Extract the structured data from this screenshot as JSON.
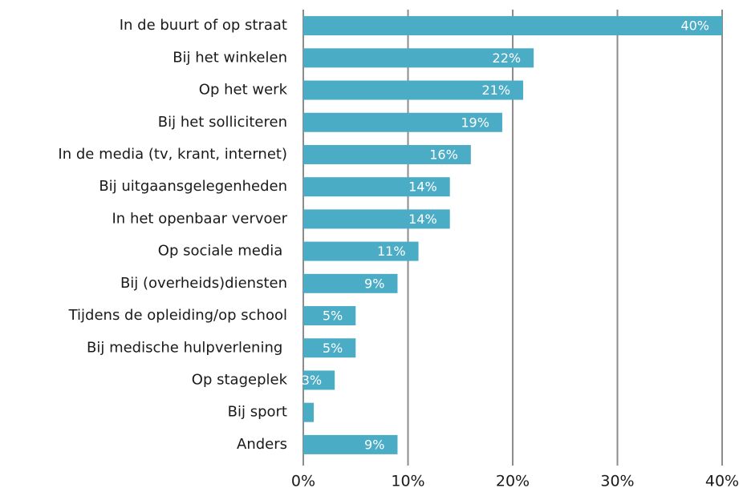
{
  "chart_data": {
    "type": "bar",
    "orientation": "horizontal",
    "categories": [
      "In de buurt of op straat",
      "Bij het winkelen",
      "Op het werk",
      "Bij het solliciteren",
      "In de media (tv, krant, internet)",
      "Bij uitgaansgelegenheden",
      "In het openbaar vervoer",
      "Op sociale media ",
      "Bij (overheids)diensten",
      "Tijdens de opleiding/op school",
      "Bij medische hulpverlening ",
      "Op stageplek",
      "Bij sport",
      "Anders"
    ],
    "values": [
      40,
      22,
      21,
      19,
      16,
      14,
      14,
      11,
      9,
      5,
      5,
      3,
      1,
      9
    ],
    "value_labels": [
      "40%",
      "22%",
      "21%",
      "19%",
      "16%",
      "14%",
      "14%",
      "11%",
      "9%",
      "5%",
      "5%",
      "3%",
      null,
      "9%"
    ],
    "color": "#4bacc6",
    "xlim": [
      0,
      40
    ],
    "xticks": [
      {
        "value": 0,
        "label": "0%"
      },
      {
        "value": 10,
        "label": "10%"
      },
      {
        "value": 20,
        "label": "20%"
      },
      {
        "value": 30,
        "label": "30%"
      },
      {
        "value": 40,
        "label": "40%"
      }
    ],
    "grid": true
  }
}
